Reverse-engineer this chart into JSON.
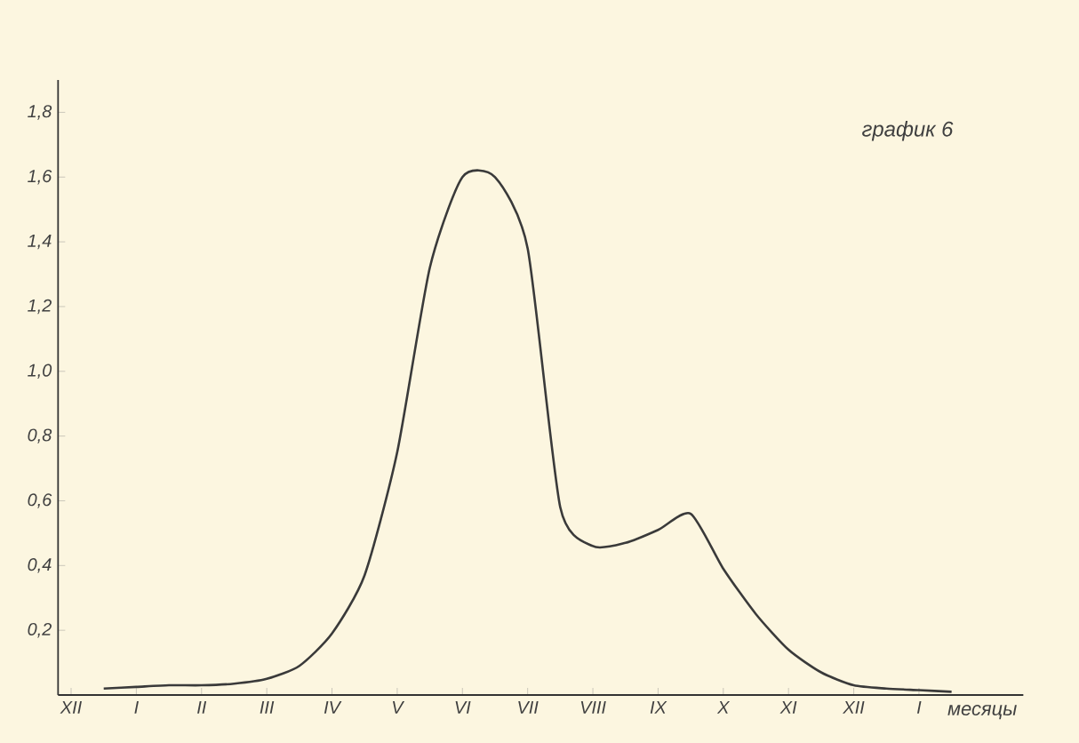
{
  "chart_data": {
    "type": "line",
    "title": "график 6",
    "xlabel": "месяцы",
    "categories": [
      "XII",
      null,
      "I",
      null,
      "II",
      null,
      "III",
      null,
      "IV",
      null,
      "V",
      null,
      "VI",
      null,
      "VII",
      null,
      "VIII",
      null,
      "IX",
      null,
      "X",
      null,
      "XI",
      null,
      "XII",
      null,
      "I",
      null
    ],
    "values": [
      null,
      0.02,
      0.025,
      0.03,
      0.03,
      0.035,
      0.05,
      0.09,
      0.19,
      0.37,
      0.75,
      1.32,
      1.6,
      1.6,
      1.38,
      0.58,
      0.46,
      0.47,
      0.51,
      0.56,
      0.39,
      0.25,
      0.14,
      0.07,
      0.03,
      0.02,
      0.015,
      0.01
    ],
    "color": "#3a3a3a",
    "ylim": [
      0,
      1.9
    ],
    "yticks": [
      {
        "value": 0.2,
        "label": "0,2"
      },
      {
        "value": 0.4,
        "label": "0,4"
      },
      {
        "value": 0.6,
        "label": "0,6"
      },
      {
        "value": 0.8,
        "label": "0,8"
      },
      {
        "value": 1.0,
        "label": "1,0"
      },
      {
        "value": 1.2,
        "label": "1,2"
      },
      {
        "value": 1.4,
        "label": "1,4"
      },
      {
        "value": 1.6,
        "label": "1,6"
      },
      {
        "value": 1.8,
        "label": "1,8"
      }
    ],
    "grid": false,
    "marker": "none",
    "line_style": "solid"
  }
}
